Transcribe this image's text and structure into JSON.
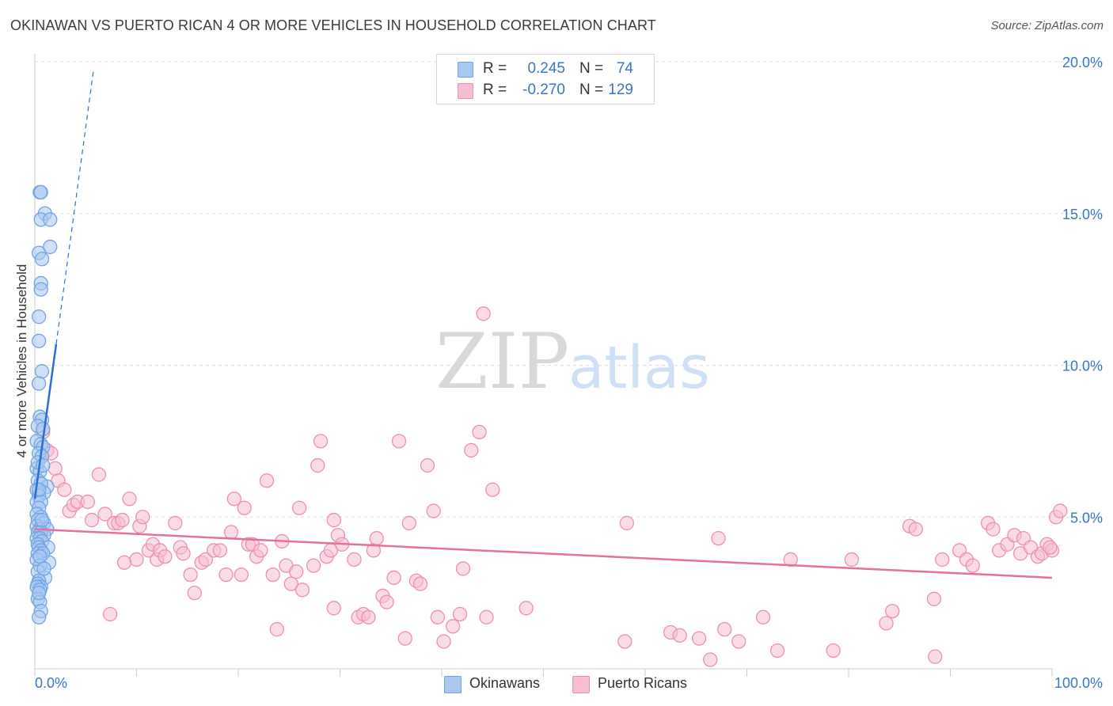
{
  "title": "OKINAWAN VS PUERTO RICAN 4 OR MORE VEHICLES IN HOUSEHOLD CORRELATION CHART",
  "source": "Source: ZipAtlas.com",
  "watermark": {
    "zip": "ZIP",
    "atlas": "atlas"
  },
  "legend": {
    "rows": [
      {
        "r_label": "R =",
        "r_value": "0.245",
        "n_label": "N =",
        "n_value": "74"
      },
      {
        "r_label": "R =",
        "r_value": "-0.270",
        "n_label": "N =",
        "n_value": "129"
      }
    ]
  },
  "bottom_legend": [
    "Okinawans",
    "Puerto Ricans"
  ],
  "colors": {
    "okinawan_fill": "#a9c8f0",
    "okinawan_stroke": "#6fa3e6",
    "okinawan_line": "#2a6fd0",
    "pr_fill": "#f6bfd1",
    "pr_stroke": "#ee8fb0",
    "pr_line": "#e4719c",
    "tick_text": "#3a74c4",
    "grid": "#dddddd"
  },
  "chart_data": {
    "type": "scatter",
    "title": "OKINAWAN VS PUERTO RICAN 4 OR MORE VEHICLES IN HOUSEHOLD CORRELATION CHART",
    "xlabel": "",
    "ylabel": "4 or more Vehicles in Household",
    "xlim": [
      0,
      100
    ],
    "ylim": [
      0,
      20
    ],
    "x_tick_labels": [
      "0.0%",
      "100.0%"
    ],
    "y_tick_values": [
      5,
      10,
      15,
      20
    ],
    "y_tick_labels": [
      "5.0%",
      "10.0%",
      "15.0%",
      "20.0%"
    ],
    "grid": true,
    "legend_position": "top-center",
    "series": [
      {
        "name": "Okinawans",
        "R": 0.245,
        "N": 74,
        "trend_solid": [
          [
            0.0,
            5.6
          ],
          [
            2.1,
            10.7
          ]
        ],
        "trend_dashed": [
          [
            2.1,
            10.7
          ],
          [
            5.8,
            19.8
          ]
        ],
        "points": [
          [
            0.5,
            15.7
          ],
          [
            0.6,
            15.7
          ],
          [
            1.0,
            15.0
          ],
          [
            0.6,
            14.8
          ],
          [
            1.5,
            14.8
          ],
          [
            1.5,
            13.9
          ],
          [
            0.4,
            13.7
          ],
          [
            0.7,
            13.5
          ],
          [
            0.6,
            12.7
          ],
          [
            0.6,
            12.5
          ],
          [
            0.4,
            11.6
          ],
          [
            0.4,
            10.8
          ],
          [
            0.7,
            9.8
          ],
          [
            0.4,
            9.4
          ],
          [
            0.5,
            8.3
          ],
          [
            0.7,
            8.2
          ],
          [
            0.3,
            8.0
          ],
          [
            0.8,
            7.9
          ],
          [
            0.2,
            7.5
          ],
          [
            0.6,
            7.4
          ],
          [
            0.8,
            7.3
          ],
          [
            0.4,
            7.1
          ],
          [
            0.7,
            7.0
          ],
          [
            0.2,
            6.6
          ],
          [
            0.5,
            6.5
          ],
          [
            0.3,
            6.2
          ],
          [
            1.2,
            6.0
          ],
          [
            0.6,
            6.1
          ],
          [
            0.9,
            5.8
          ],
          [
            0.2,
            5.9
          ],
          [
            0.4,
            5.7
          ],
          [
            0.2,
            5.5
          ],
          [
            0.6,
            5.5
          ],
          [
            0.4,
            5.3
          ],
          [
            0.2,
            5.1
          ],
          [
            0.6,
            5.0
          ],
          [
            0.3,
            4.9
          ],
          [
            0.9,
            4.8
          ],
          [
            0.2,
            4.7
          ],
          [
            0.5,
            4.6
          ],
          [
            1.2,
            4.6
          ],
          [
            0.3,
            4.5
          ],
          [
            0.6,
            4.5
          ],
          [
            0.9,
            4.4
          ],
          [
            0.2,
            4.3
          ],
          [
            0.5,
            4.3
          ],
          [
            0.7,
            4.2
          ],
          [
            0.3,
            4.1
          ],
          [
            1.3,
            4.0
          ],
          [
            0.4,
            4.0
          ],
          [
            0.6,
            3.9
          ],
          [
            0.3,
            3.8
          ],
          [
            0.8,
            3.8
          ],
          [
            0.2,
            3.6
          ],
          [
            1.4,
            3.5
          ],
          [
            0.5,
            3.4
          ],
          [
            0.3,
            3.2
          ],
          [
            1.0,
            3.0
          ],
          [
            0.4,
            2.9
          ],
          [
            0.3,
            2.8
          ],
          [
            0.6,
            2.7
          ],
          [
            0.2,
            2.7
          ],
          [
            0.5,
            2.6
          ],
          [
            0.3,
            2.3
          ],
          [
            0.5,
            2.2
          ],
          [
            0.6,
            1.9
          ],
          [
            0.4,
            1.7
          ],
          [
            0.3,
            6.8
          ],
          [
            0.8,
            6.7
          ],
          [
            0.4,
            5.9
          ],
          [
            0.7,
            4.9
          ],
          [
            0.5,
            3.7
          ],
          [
            0.9,
            3.3
          ],
          [
            0.4,
            2.5
          ]
        ]
      },
      {
        "name": "Puerto Ricans",
        "R": -0.27,
        "N": 129,
        "trend_solid": [
          [
            0.0,
            4.6
          ],
          [
            100.0,
            3.0
          ]
        ],
        "points": [
          [
            0.8,
            7.8
          ],
          [
            1.2,
            7.2
          ],
          [
            1.6,
            7.1
          ],
          [
            2.0,
            6.6
          ],
          [
            2.3,
            6.2
          ],
          [
            2.9,
            5.9
          ],
          [
            3.4,
            5.2
          ],
          [
            3.8,
            5.4
          ],
          [
            4.2,
            5.5
          ],
          [
            5.2,
            5.5
          ],
          [
            5.6,
            4.9
          ],
          [
            6.3,
            6.4
          ],
          [
            6.9,
            5.1
          ],
          [
            7.4,
            1.8
          ],
          [
            7.8,
            4.8
          ],
          [
            8.2,
            4.8
          ],
          [
            8.6,
            4.9
          ],
          [
            9.3,
            5.6
          ],
          [
            8.8,
            3.5
          ],
          [
            10.0,
            3.6
          ],
          [
            10.3,
            4.7
          ],
          [
            10.6,
            5.0
          ],
          [
            11.2,
            3.9
          ],
          [
            11.6,
            4.1
          ],
          [
            12.0,
            3.6
          ],
          [
            12.3,
            3.9
          ],
          [
            12.8,
            3.7
          ],
          [
            13.8,
            4.8
          ],
          [
            14.3,
            4.0
          ],
          [
            14.6,
            3.8
          ],
          [
            15.3,
            3.1
          ],
          [
            15.7,
            2.5
          ],
          [
            16.4,
            3.5
          ],
          [
            16.8,
            3.6
          ],
          [
            17.6,
            3.9
          ],
          [
            18.2,
            3.9
          ],
          [
            18.8,
            3.1
          ],
          [
            19.3,
            4.5
          ],
          [
            19.6,
            5.6
          ],
          [
            20.3,
            3.1
          ],
          [
            20.6,
            5.3
          ],
          [
            21.0,
            4.1
          ],
          [
            21.4,
            4.1
          ],
          [
            21.8,
            3.7
          ],
          [
            22.2,
            3.9
          ],
          [
            22.8,
            6.2
          ],
          [
            23.4,
            3.1
          ],
          [
            23.8,
            1.3
          ],
          [
            24.3,
            4.2
          ],
          [
            24.7,
            3.4
          ],
          [
            25.2,
            2.8
          ],
          [
            25.7,
            3.2
          ],
          [
            26.0,
            5.3
          ],
          [
            26.3,
            2.6
          ],
          [
            27.4,
            3.4
          ],
          [
            27.8,
            6.7
          ],
          [
            28.1,
            7.5
          ],
          [
            28.7,
            3.7
          ],
          [
            29.1,
            3.9
          ],
          [
            29.4,
            4.9
          ],
          [
            29.8,
            4.4
          ],
          [
            29.4,
            2.0
          ],
          [
            30.2,
            4.1
          ],
          [
            31.4,
            3.6
          ],
          [
            31.8,
            1.7
          ],
          [
            32.3,
            1.8
          ],
          [
            32.8,
            1.7
          ],
          [
            33.3,
            3.9
          ],
          [
            33.6,
            4.3
          ],
          [
            34.2,
            2.4
          ],
          [
            34.6,
            2.2
          ],
          [
            35.3,
            3.0
          ],
          [
            35.8,
            7.5
          ],
          [
            36.4,
            1.0
          ],
          [
            36.8,
            4.8
          ],
          [
            37.5,
            2.9
          ],
          [
            37.9,
            2.8
          ],
          [
            38.6,
            6.7
          ],
          [
            39.2,
            5.2
          ],
          [
            39.6,
            1.7
          ],
          [
            40.2,
            0.9
          ],
          [
            41.1,
            1.4
          ],
          [
            41.8,
            1.8
          ],
          [
            42.1,
            3.3
          ],
          [
            42.9,
            7.2
          ],
          [
            43.7,
            7.8
          ],
          [
            44.4,
            1.7
          ],
          [
            44.1,
            11.7
          ],
          [
            45.0,
            5.9
          ],
          [
            48.3,
            2.0
          ],
          [
            58.0,
            0.9
          ],
          [
            58.2,
            4.8
          ],
          [
            62.5,
            1.2
          ],
          [
            63.4,
            1.1
          ],
          [
            65.3,
            1.0
          ],
          [
            66.4,
            0.3
          ],
          [
            67.8,
            1.3
          ],
          [
            67.2,
            4.3
          ],
          [
            69.2,
            0.9
          ],
          [
            71.6,
            1.7
          ],
          [
            73.0,
            0.6
          ],
          [
            74.3,
            3.6
          ],
          [
            78.5,
            0.6
          ],
          [
            80.3,
            3.6
          ],
          [
            83.7,
            1.5
          ],
          [
            84.3,
            1.9
          ],
          [
            86.0,
            4.7
          ],
          [
            86.6,
            4.6
          ],
          [
            88.5,
            0.4
          ],
          [
            88.4,
            2.3
          ],
          [
            89.2,
            3.6
          ],
          [
            90.9,
            3.9
          ],
          [
            91.6,
            3.6
          ],
          [
            92.2,
            3.4
          ],
          [
            93.7,
            4.8
          ],
          [
            94.2,
            4.6
          ],
          [
            94.8,
            3.9
          ],
          [
            95.6,
            4.1
          ],
          [
            96.3,
            4.4
          ],
          [
            96.9,
            3.8
          ],
          [
            97.2,
            4.3
          ],
          [
            97.9,
            4.0
          ],
          [
            98.6,
            3.7
          ],
          [
            99.0,
            3.8
          ],
          [
            99.5,
            4.1
          ],
          [
            100.0,
            3.9
          ],
          [
            100.4,
            5.0
          ],
          [
            100.8,
            5.2
          ],
          [
            99.8,
            4.0
          ]
        ]
      }
    ]
  }
}
